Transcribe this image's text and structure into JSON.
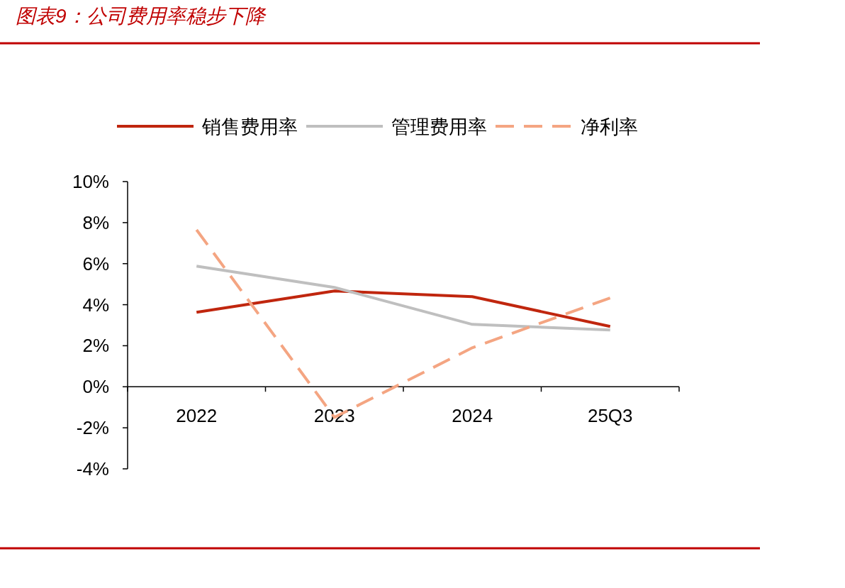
{
  "chart_data": {
    "type": "line",
    "title": "图表9：公司费用率稳步下降",
    "categories": [
      "2022",
      "2023",
      "2024",
      "25Q3"
    ],
    "series": [
      {
        "name": "销售费用率",
        "color": "#c0260e",
        "line_style": "solid",
        "values": [
          3.63,
          4.67,
          4.39,
          2.94
        ]
      },
      {
        "name": "管理费用率",
        "color": "#bfbfbf",
        "line_style": "solid",
        "values": [
          5.88,
          4.84,
          3.04,
          2.77
        ]
      },
      {
        "name": "净利率",
        "color": "#f4a582",
        "line_style": "dashed",
        "values": [
          7.65,
          -1.49,
          1.9,
          4.33
        ]
      }
    ],
    "ylim": [
      -4,
      10
    ],
    "yticks": [
      {
        "value": -4,
        "label": "-4%"
      },
      {
        "value": -2,
        "label": "-2%"
      },
      {
        "value": 0,
        "label": "0%"
      },
      {
        "value": 2,
        "label": "2%"
      },
      {
        "value": 4,
        "label": "4%"
      },
      {
        "value": 6,
        "label": "6%"
      },
      {
        "value": 8,
        "label": "8%"
      },
      {
        "value": 10,
        "label": "10%"
      }
    ],
    "legend": "top",
    "grid": false,
    "marker": "none"
  }
}
